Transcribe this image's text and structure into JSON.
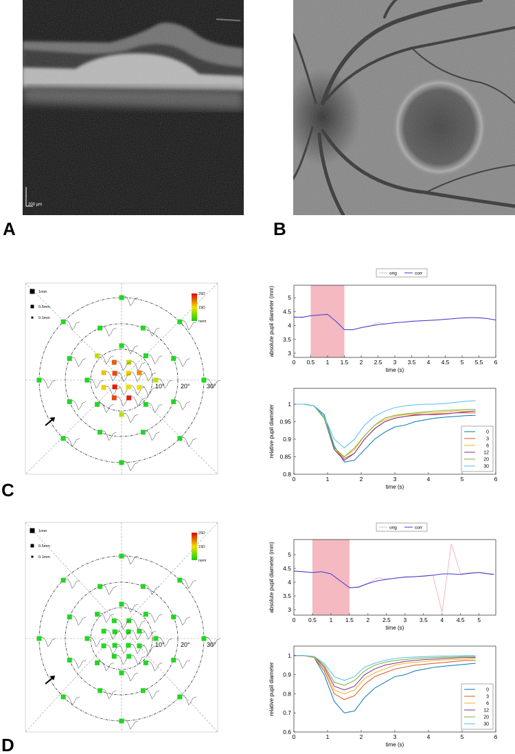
{
  "panels": [
    {
      "label": "A",
      "scale_bar": "200 µm"
    },
    {
      "label": "B"
    },
    {
      "label": "C",
      "size_legend": [
        "1mm",
        "0.5mm",
        "0.1mm"
      ],
      "color_legend": [
        "2SD",
        "1SD",
        "norm"
      ],
      "ring_labels": [
        "10°",
        "20°",
        "30°"
      ]
    },
    {
      "label": "D",
      "size_legend": [
        "1mm",
        "0.5mm",
        "0.1mm"
      ],
      "color_legend": [
        "2SD",
        "1SD",
        "norm"
      ],
      "ring_labels": [
        "10°",
        "20°",
        "30°"
      ]
    }
  ],
  "chart_data": [
    {
      "type": "line",
      "xlabel": "time (s)",
      "ylabel": "absolute pupil diameter (mm)",
      "legend": "top",
      "shade": [
        0.5,
        1.5
      ],
      "shade_color": "#f4b9c1",
      "x": [
        0,
        0.25,
        0.5,
        0.75,
        1,
        1.25,
        1.5,
        1.75,
        2,
        2.25,
        2.5,
        2.75,
        3,
        3.25,
        3.5,
        3.75,
        4,
        4.25,
        4.5,
        4.75,
        5,
        5.25,
        5.5,
        5.75,
        6
      ],
      "series": [
        {
          "name": "orig",
          "color": "#f4b6c0",
          "values": [
            4.32,
            4.28,
            4.36,
            4.4,
            4.41,
            4.13,
            3.86,
            3.84,
            3.93,
            3.97,
            4.1,
            4.05,
            4.11,
            4.12,
            4.16,
            4.16,
            4.19,
            4.2,
            4.23,
            4.24,
            4.27,
            4.29,
            4.27,
            4.25,
            4.19
          ]
        },
        {
          "name": "corr",
          "color": "#3a3ad8",
          "values": [
            4.3,
            4.3,
            4.35,
            4.38,
            4.4,
            4.15,
            3.85,
            3.85,
            3.92,
            3.98,
            4.03,
            4.06,
            4.1,
            4.12,
            4.15,
            4.17,
            4.18,
            4.2,
            4.22,
            4.25,
            4.27,
            4.28,
            4.28,
            4.25,
            4.2
          ]
        }
      ],
      "xlim": [
        0,
        6
      ],
      "xticks": [
        0,
        0.5,
        1,
        1.5,
        2,
        2.5,
        3,
        3.5,
        4,
        4.5,
        5,
        5.5,
        6
      ],
      "ylim": [
        2.85,
        5.45
      ],
      "yticks": [
        3,
        3.5,
        4,
        4.5,
        5
      ]
    },
    {
      "type": "line",
      "xlabel": "time (s)",
      "ylabel": "relative pupil diameter",
      "legend": "lower right",
      "x": [
        0,
        0.3,
        0.6,
        0.9,
        1.2,
        1.5,
        1.8,
        2.1,
        2.4,
        2.7,
        3.0,
        3.3,
        3.6,
        3.9,
        4.2,
        4.5,
        4.8,
        5.1,
        5.4
      ],
      "series": [
        {
          "name": "0",
          "color": "#0072bd",
          "values": [
            1,
            1,
            0.995,
            0.97,
            0.88,
            0.835,
            0.84,
            0.87,
            0.9,
            0.92,
            0.935,
            0.94,
            0.95,
            0.955,
            0.96,
            0.963,
            0.965,
            0.967,
            0.968
          ]
        },
        {
          "name": "3",
          "color": "#d95319",
          "values": [
            1,
            1,
            0.995,
            0.96,
            0.87,
            0.845,
            0.86,
            0.9,
            0.93,
            0.95,
            0.96,
            0.965,
            0.97,
            0.97,
            0.972,
            0.973,
            0.975,
            0.975,
            0.975
          ]
        },
        {
          "name": "6",
          "color": "#edb120",
          "values": [
            1,
            1,
            0.995,
            0.96,
            0.87,
            0.85,
            0.87,
            0.91,
            0.94,
            0.955,
            0.965,
            0.97,
            0.972,
            0.975,
            0.975,
            0.978,
            0.98,
            0.98,
            0.98
          ]
        },
        {
          "name": "12",
          "color": "#7e2f8e",
          "values": [
            1,
            1,
            0.995,
            0.96,
            0.87,
            0.84,
            0.86,
            0.9,
            0.93,
            0.95,
            0.96,
            0.965,
            0.968,
            0.97,
            0.97,
            0.972,
            0.975,
            0.978,
            0.98
          ]
        },
        {
          "name": "20",
          "color": "#77ac30",
          "values": [
            1,
            1,
            0.995,
            0.96,
            0.875,
            0.85,
            0.875,
            0.91,
            0.94,
            0.96,
            0.968,
            0.972,
            0.975,
            0.978,
            0.98,
            0.982,
            0.983,
            0.985,
            0.985
          ]
        },
        {
          "name": "30",
          "color": "#4dbeee",
          "values": [
            1,
            1,
            0.995,
            0.965,
            0.9,
            0.875,
            0.9,
            0.94,
            0.965,
            0.98,
            0.99,
            0.995,
            0.998,
            1,
            1,
            1.002,
            1.005,
            1.008,
            1.01
          ]
        }
      ],
      "xlim": [
        0,
        6
      ],
      "xticks": [
        0,
        1,
        2,
        3,
        4,
        5,
        6
      ],
      "ylim": [
        0.8,
        1.045
      ],
      "yticks": [
        0.8,
        0.85,
        0.9,
        0.95,
        1
      ]
    },
    {
      "type": "line",
      "xlabel": "time (s)",
      "ylabel": "absolute pupil diameter (mm)",
      "legend": "top",
      "shade": [
        0.5,
        1.5
      ],
      "shade_color": "#f4b9c1",
      "x": [
        0,
        0.25,
        0.5,
        0.75,
        1,
        1.25,
        1.5,
        1.75,
        2,
        2.25,
        2.5,
        2.75,
        3,
        3.25,
        3.5,
        3.75,
        4,
        4.25,
        4.5,
        4.75,
        5,
        5.25,
        5.4
      ],
      "series": [
        {
          "name": "orig",
          "color": "#f4b6c0",
          "values": [
            4.42,
            4.37,
            4.36,
            4.39,
            4.28,
            4.06,
            3.78,
            3.84,
            3.96,
            4.15,
            4.12,
            4.14,
            4.2,
            4.19,
            4.24,
            4.26,
            2.9,
            5.4,
            4.3,
            4.35,
            4.36,
            4.32,
            4.3
          ]
        },
        {
          "name": "corr",
          "color": "#3a3ad8",
          "values": [
            4.4,
            4.38,
            4.35,
            4.38,
            4.3,
            4.05,
            3.8,
            3.82,
            3.95,
            4.05,
            4.1,
            4.15,
            4.18,
            4.2,
            4.22,
            4.25,
            4.3,
            4.3,
            4.28,
            4.32,
            4.35,
            4.3,
            4.28
          ]
        }
      ],
      "xlim": [
        0,
        5.45
      ],
      "xticks": [
        0,
        0.5,
        1,
        1.5,
        2,
        2.5,
        3,
        3.5,
        4,
        4.5,
        5
      ],
      "ylim": [
        2.8,
        5.55
      ],
      "yticks": [
        3,
        3.5,
        4,
        4.5,
        5
      ]
    },
    {
      "type": "line",
      "xlabel": "time (s)",
      "ylabel": "relative pupil diameter",
      "legend": "lower right",
      "x": [
        0,
        0.3,
        0.6,
        0.9,
        1.2,
        1.5,
        1.8,
        2.1,
        2.4,
        2.7,
        3.0,
        3.3,
        3.6,
        3.9,
        4.2,
        4.5,
        4.8,
        5.1,
        5.4
      ],
      "series": [
        {
          "name": "0",
          "color": "#0072bd",
          "values": [
            1,
            1,
            0.99,
            0.9,
            0.76,
            0.7,
            0.71,
            0.78,
            0.83,
            0.86,
            0.89,
            0.9,
            0.92,
            0.93,
            0.94,
            0.945,
            0.95,
            0.955,
            0.96
          ]
        },
        {
          "name": "3",
          "color": "#d95319",
          "values": [
            1,
            1,
            0.99,
            0.92,
            0.8,
            0.77,
            0.79,
            0.85,
            0.89,
            0.91,
            0.93,
            0.94,
            0.95,
            0.955,
            0.96,
            0.965,
            0.97,
            0.975,
            0.975
          ]
        },
        {
          "name": "6",
          "color": "#edb120",
          "values": [
            1,
            1,
            0.99,
            0.93,
            0.82,
            0.8,
            0.82,
            0.88,
            0.91,
            0.93,
            0.95,
            0.96,
            0.965,
            0.97,
            0.975,
            0.978,
            0.98,
            0.982,
            0.985
          ]
        },
        {
          "name": "12",
          "color": "#7e2f8e",
          "values": [
            1,
            1,
            0.995,
            0.94,
            0.84,
            0.82,
            0.84,
            0.9,
            0.93,
            0.95,
            0.96,
            0.97,
            0.975,
            0.98,
            0.982,
            0.985,
            0.988,
            0.99,
            0.99
          ]
        },
        {
          "name": "20",
          "color": "#77ac30",
          "values": [
            1,
            1,
            0.995,
            0.95,
            0.86,
            0.845,
            0.87,
            0.92,
            0.95,
            0.965,
            0.975,
            0.98,
            0.985,
            0.988,
            0.99,
            0.992,
            0.993,
            0.995,
            0.995
          ]
        },
        {
          "name": "30",
          "color": "#4dbeee",
          "values": [
            1,
            1,
            0.995,
            0.96,
            0.89,
            0.87,
            0.89,
            0.94,
            0.96,
            0.975,
            0.985,
            0.99,
            0.993,
            0.995,
            0.997,
            0.998,
            0.999,
            1,
            1
          ]
        }
      ],
      "xlim": [
        0,
        6
      ],
      "xticks": [
        0,
        1,
        2,
        3,
        4,
        5,
        6
      ],
      "ylim": [
        0.6,
        1.05
      ],
      "yticks": [
        0.6,
        0.7,
        0.8,
        0.9,
        1
      ]
    }
  ]
}
